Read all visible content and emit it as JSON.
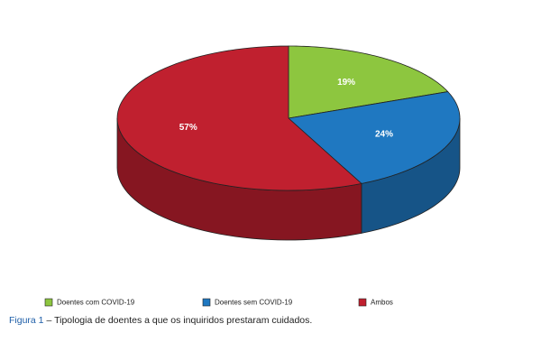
{
  "chart_data": {
    "type": "pie3d",
    "categories": [
      "Doentes com COVID-19",
      "Doentes sem COVID-19",
      "Ambos"
    ],
    "values": [
      19,
      24,
      57
    ],
    "value_labels": [
      "19%",
      "24%",
      "57%"
    ],
    "colors": [
      "#8dc63f",
      "#1f78c1",
      "#c0202f"
    ],
    "legend": "bottom",
    "caption_label": "Figura 1",
    "caption": "– Tipologia de doentes a que os inquiridos prestaram cuidados."
  }
}
